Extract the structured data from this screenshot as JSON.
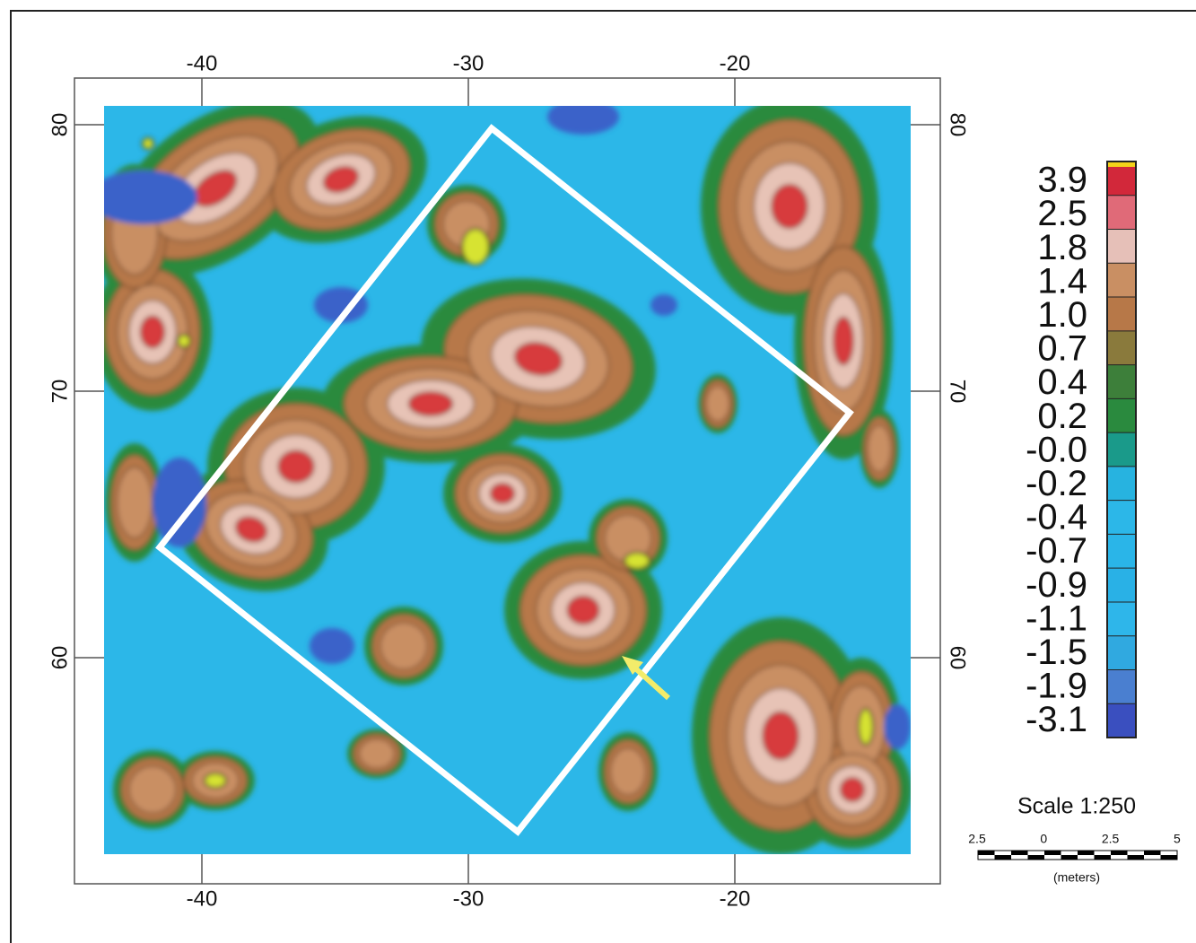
{
  "map": {
    "x_axis_labels": [
      -40,
      -30,
      -20
    ],
    "y_axis_labels": [
      80,
      70,
      60
    ],
    "legend_labels": [
      "3.9",
      "2.5",
      "1.8",
      "1.4",
      "1.0",
      "0.7",
      "0.4",
      "0.2",
      "-0.0",
      "-0.2",
      "-0.4",
      "-0.7",
      "-0.9",
      "-1.1",
      "-1.5",
      "-1.9",
      "-3.1"
    ],
    "scale_title": "Scale 1:250",
    "scale_bar_labels": [
      "2.5",
      "0",
      "2.5",
      "5"
    ],
    "scale_units": "(meters)"
  }
}
